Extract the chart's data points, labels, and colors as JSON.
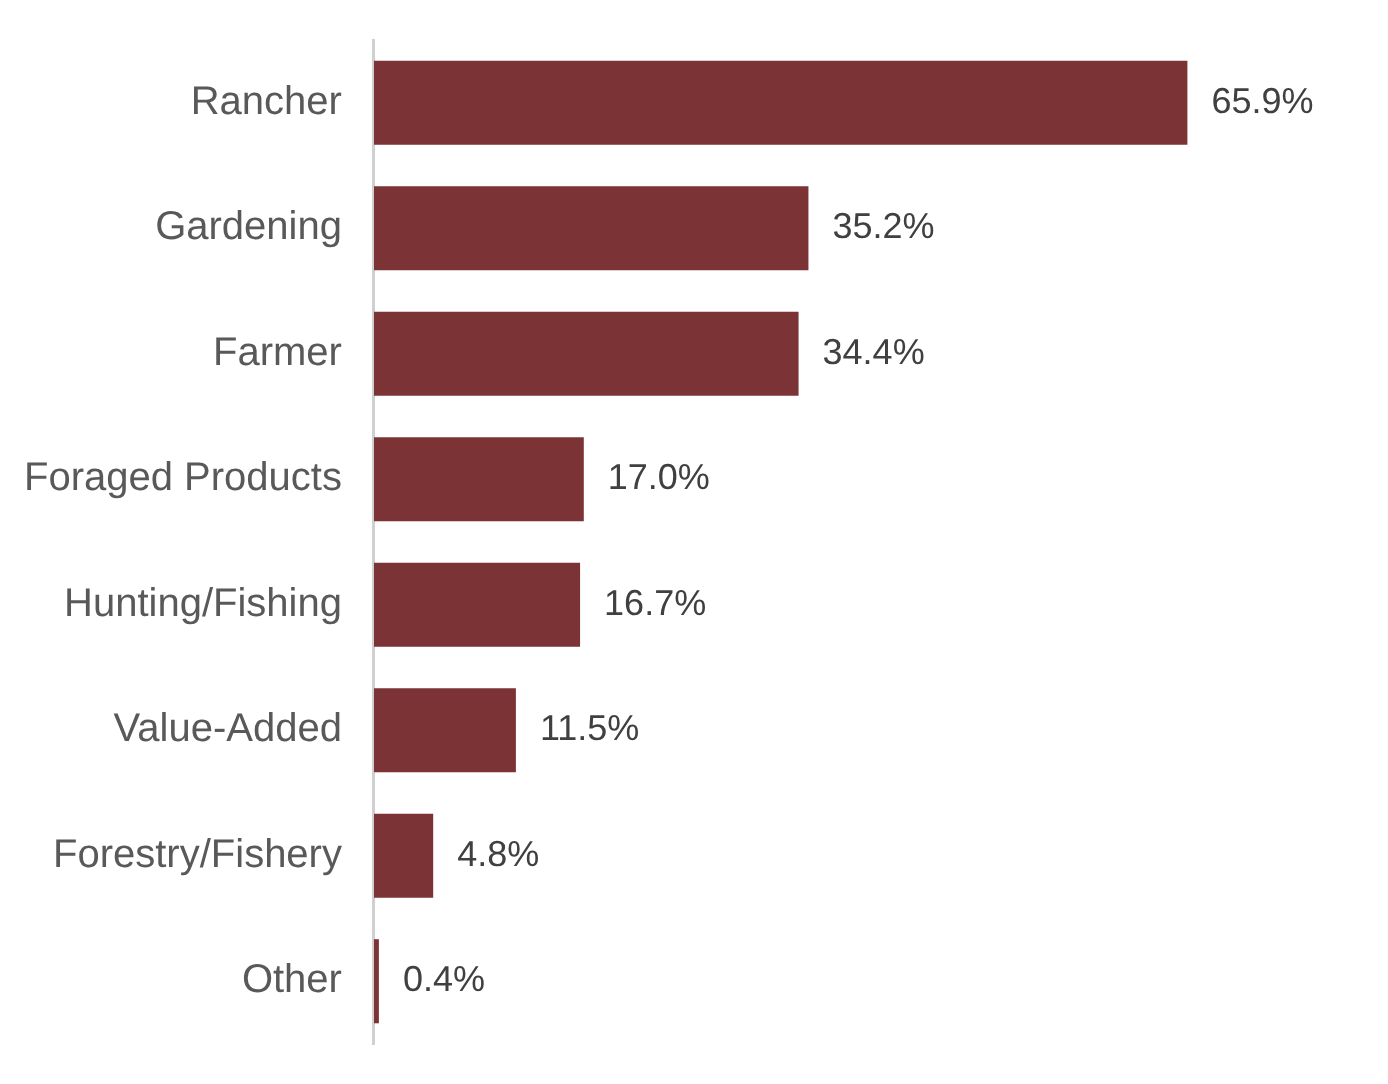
{
  "chart_data": {
    "type": "bar",
    "orientation": "horizontal",
    "categories": [
      "Rancher",
      "Gardening",
      "Farmer",
      "Foraged Products",
      "Hunting/Fishing",
      "Value-Added",
      "Forestry/Fishery",
      "Other"
    ],
    "values": [
      65.9,
      35.2,
      34.4,
      17.0,
      16.7,
      11.5,
      4.8,
      0.4
    ],
    "value_labels": [
      "65.9%",
      "35.2%",
      "34.4%",
      "17.0%",
      "16.7%",
      "11.5%",
      "4.8%",
      "0.4%"
    ],
    "color": "#7b3335",
    "legend": false,
    "tick_labels": "y"
  }
}
